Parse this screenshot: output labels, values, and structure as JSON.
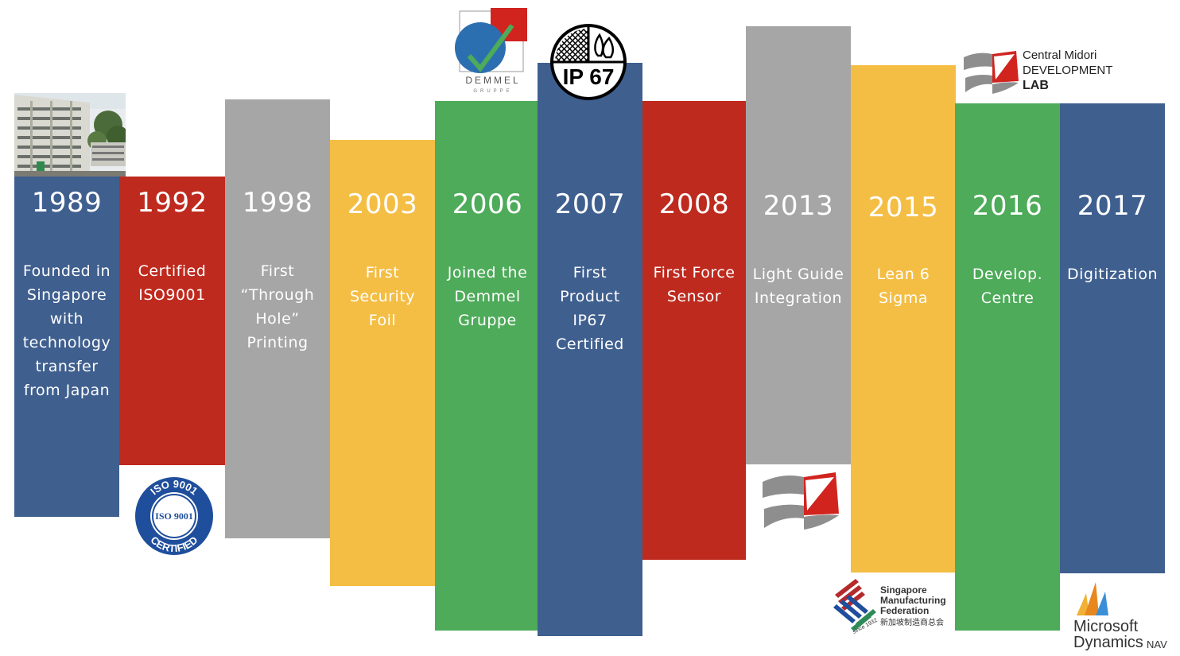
{
  "timeline": [
    {
      "year": "1989",
      "lines": [
        "Founded in",
        "Singapore",
        "with",
        "technology",
        "transfer",
        "from Japan"
      ]
    },
    {
      "year": "1992",
      "lines": [
        "Certified",
        "ISO9001"
      ]
    },
    {
      "year": "1998",
      "lines": [
        "First",
        "“Through",
        "Hole”",
        "Printing"
      ]
    },
    {
      "year": "2003",
      "lines": [
        "First",
        "Security",
        "Foil"
      ]
    },
    {
      "year": "2006",
      "lines": [
        "Joined the",
        "Demmel",
        "Gruppe"
      ]
    },
    {
      "year": "2007",
      "lines": [
        "First",
        "Product",
        "IP67",
        "Certified"
      ]
    },
    {
      "year": "2008",
      "lines": [
        "First Force",
        "Sensor"
      ]
    },
    {
      "year": "2013",
      "lines": [
        "Light Guide",
        "Integration"
      ]
    },
    {
      "year": "2015",
      "lines": [
        "Lean 6",
        "Sigma"
      ]
    },
    {
      "year": "2016",
      "lines": [
        "Develop.",
        "Centre"
      ]
    },
    {
      "year": "2017",
      "lines": [
        "Digitization"
      ]
    }
  ],
  "logos": {
    "iso": {
      "ring_top": "ISO 9001",
      "center": "ISO 9001",
      "ring_bottom": "CERTIFIED"
    },
    "demmel": {
      "name": "DEMMEL",
      "sub": "GRUPPE"
    },
    "ip67": {
      "label": "IP 67"
    },
    "central_midori": {
      "line1": "Central Midori",
      "line2": "DEVELOPMENT",
      "line3": "LAB"
    },
    "smf": {
      "line1": "Singapore",
      "line2": "Manufacturing",
      "line3": "Federation",
      "chinese": "新加坡制造商总会",
      "since": "since 1932"
    },
    "microsoft": {
      "line1": "Microsoft",
      "line2": "Dynamics",
      "suffix": "NAV"
    }
  },
  "colors": {
    "blue": "#3f5f8f",
    "red": "#bf2a1e",
    "gray": "#a6a6a6",
    "yellow": "#f4be45",
    "green": "#4dab59"
  }
}
